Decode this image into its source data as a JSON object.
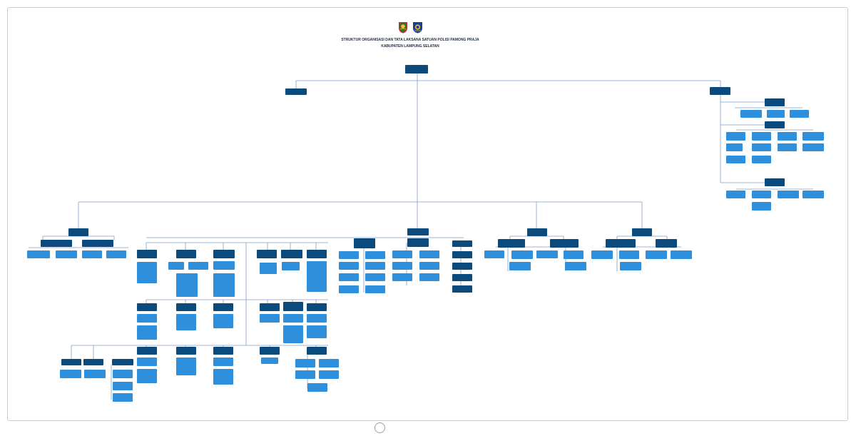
{
  "title_line1": "STRUKTUR ORGANISASI DAN TATA LAKSANA SATUAN POLISI PAMONG PRAJA",
  "title_line2": "KABUPATEN LAMPUNG SELATAN",
  "colors": {
    "dark_box": "#0b4a7d",
    "light_box": "#2e8fdc",
    "connector": "#7f9ec7",
    "frame": "#c9ccd6"
  },
  "icons": [
    "regency-crest-icon",
    "satpol-pp-emblem-icon"
  ]
}
